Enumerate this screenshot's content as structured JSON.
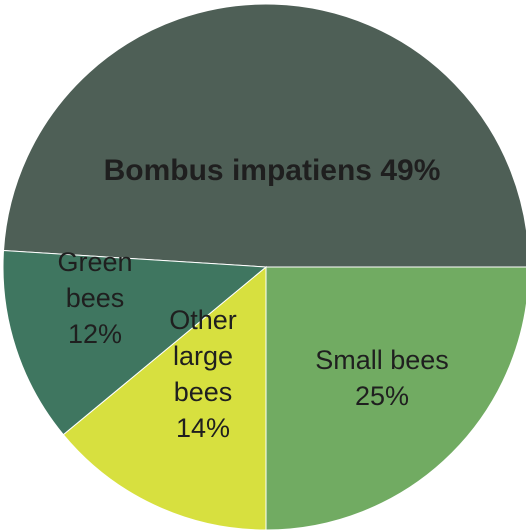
{
  "chart_data": {
    "type": "pie",
    "title": "",
    "slices": [
      {
        "name": "Bombus impatiens",
        "value": 49,
        "color": "#4e5f56",
        "label_lines": [
          "Bombus impatiens 49%"
        ],
        "bold": true
      },
      {
        "name": "Small bees",
        "value": 25,
        "color": "#71ab62",
        "label_lines": [
          "Small bees",
          "25%"
        ],
        "bold": false
      },
      {
        "name": "Other large bees",
        "value": 14,
        "color": "#d7e03f",
        "label_lines": [
          "Other",
          "large",
          "bees",
          "14%"
        ],
        "bold": false
      },
      {
        "name": "Green bees",
        "value": 12,
        "color": "#3f7660",
        "label_lines": [
          "Green",
          "bees",
          "12%"
        ],
        "bold": false
      }
    ],
    "legend": "none"
  }
}
